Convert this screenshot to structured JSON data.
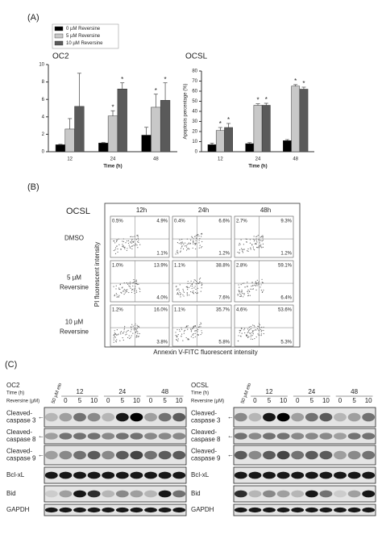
{
  "panel_labels": [
    "(A)",
    "(B)",
    "(C)"
  ],
  "chart_data": [
    {
      "type": "bar",
      "title": "OC2",
      "x_label": "Time (h)",
      "categories": [
        "12",
        "24",
        "48"
      ],
      "series": [
        {
          "name": "0 µM Reversine",
          "color": "#000000",
          "values": [
            0.8,
            1.0,
            1.9
          ],
          "errors": [
            0.05,
            0.05,
            0.9
          ],
          "stars": [
            null,
            null,
            null
          ]
        },
        {
          "name": "5 µM Reversine",
          "color": "#c8c8c8",
          "values": [
            2.6,
            4.1,
            5.1
          ],
          "errors": [
            1.2,
            0.6,
            1.5
          ],
          "stars": [
            null,
            "*",
            "*"
          ]
        },
        {
          "name": "10 µM Reversine",
          "color": "#5a5a5a",
          "values": [
            5.2,
            7.2,
            5.9
          ],
          "errors": [
            3.8,
            0.7,
            2.0
          ],
          "stars": [
            null,
            "*",
            "*"
          ]
        }
      ],
      "ylim": [
        0,
        10
      ],
      "yticks": [
        0,
        2,
        4,
        6,
        8,
        10
      ],
      "legend": "top-left"
    },
    {
      "type": "bar",
      "title": "OCSL",
      "x_label": "Time (h)",
      "y_label": "Apoptosis percentage (%)",
      "categories": [
        "12",
        "24",
        "48"
      ],
      "series": [
        {
          "color": "#000000",
          "values": [
            7,
            8,
            11
          ],
          "errors": [
            1.5,
            1,
            1
          ],
          "stars": [
            null,
            null,
            null
          ]
        },
        {
          "color": "#c8c8c8",
          "values": [
            21,
            46,
            65
          ],
          "errors": [
            3,
            1.5,
            1.5
          ],
          "stars": [
            "*",
            "*",
            "*"
          ]
        },
        {
          "color": "#5a5a5a",
          "values": [
            24,
            46,
            62
          ],
          "errors": [
            4,
            2,
            2
          ],
          "stars": [
            "*",
            "*",
            "*"
          ]
        }
      ],
      "ylim": [
        0,
        80
      ],
      "yticks": [
        0,
        10,
        20,
        30,
        40,
        50,
        60,
        70,
        80
      ]
    }
  ],
  "flow": {
    "title": "OCSL",
    "columns": [
      "12h",
      "24h",
      "48h"
    ],
    "rows": [
      {
        "label": [
          "DMSO"
        ],
        "cells": [
          [
            "0.5%",
            "4.9%",
            "1.1%"
          ],
          [
            "0.4%",
            "6.6%",
            "1.2%"
          ],
          [
            "2.7%",
            "9.3%",
            "1.2%"
          ]
        ]
      },
      {
        "label": [
          "5 µM",
          "Reversine"
        ],
        "cells": [
          [
            "1.0%",
            "13.9%",
            "4.0%"
          ],
          [
            "1.1%",
            "38.8%",
            "7.6%"
          ],
          [
            "2.8%",
            "59.1%",
            "6.4%"
          ]
        ]
      },
      {
        "label": [
          "10 µM",
          "Reversine"
        ],
        "cells": [
          [
            "1.2%",
            "16.0%",
            "3.8%"
          ],
          [
            "1.1%",
            "35.7%",
            "5.8%"
          ],
          [
            "4.6%",
            "53.6%",
            "5.3%"
          ]
        ]
      }
    ],
    "y_label": "PI fluorescent intensity",
    "x_label": "Annexin V-FITC fluorescent intensity"
  },
  "blots": [
    {
      "cell_line": "OC2",
      "control": "50 µM eto",
      "time_label": "Time (h)",
      "times": [
        "12",
        "24",
        "48"
      ],
      "dose_label": "Reversine (µM)",
      "doses": [
        "0",
        "5",
        "10"
      ],
      "rows": [
        [
          "Cleaved-",
          "caspase 3"
        ],
        [
          "Cleaved-",
          "caspase 8"
        ],
        [
          "Cleaved-",
          "caspase 9"
        ],
        [
          "Bcl-xL"
        ],
        [
          "Bid"
        ],
        [
          "GAPDH"
        ]
      ]
    },
    {
      "cell_line": "OCSL",
      "control": "50 µM eto",
      "time_label": "Time (h)",
      "times": [
        "12",
        "24",
        "48"
      ],
      "dose_label": "Reversine (µM)",
      "doses": [
        "0",
        "5",
        "10"
      ],
      "rows": [
        [
          "Cleaved-",
          "caspase 3"
        ],
        [
          "Cleaved-",
          "caspase 8"
        ],
        [
          "Cleaved-",
          "caspase 9"
        ],
        [
          "Bcl-xL"
        ],
        [
          "Bid"
        ],
        [
          "GAPDH"
        ]
      ]
    }
  ]
}
